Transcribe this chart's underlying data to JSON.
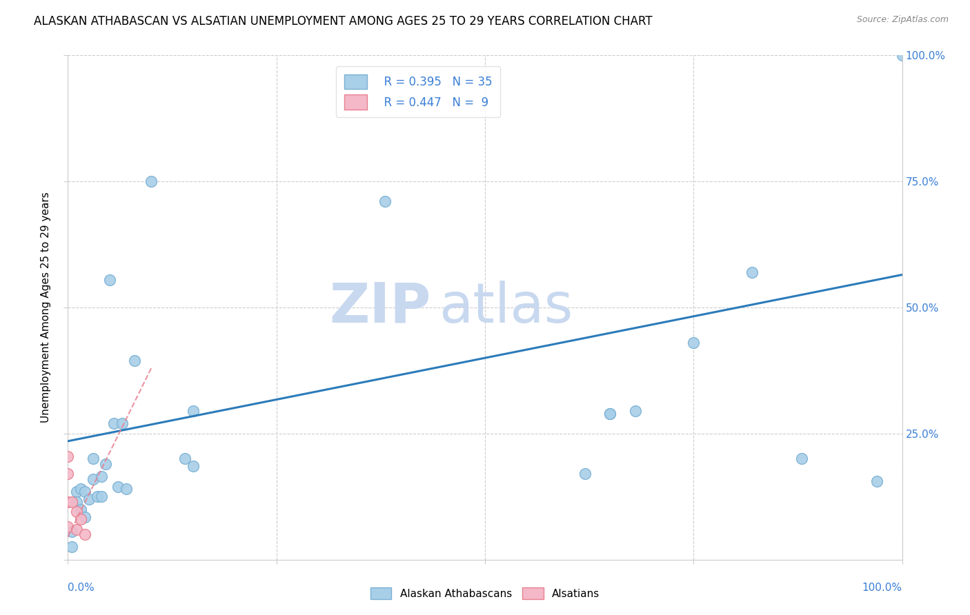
{
  "title": "ALASKAN ATHABASCAN VS ALSATIAN UNEMPLOYMENT AMONG AGES 25 TO 29 YEARS CORRELATION CHART",
  "source": "Source: ZipAtlas.com",
  "ylabel": "Unemployment Among Ages 25 to 29 years",
  "legend_label1": "Alaskan Athabascans",
  "legend_label2": "Alsatians",
  "legend_r1": "R = 0.395",
  "legend_n1": "N = 35",
  "legend_r2": "R = 0.447",
  "legend_n2": "N =  9",
  "watermark_zip": "ZIP",
  "watermark_atlas": "atlas",
  "blue_scatter_x": [
    0.005,
    0.005,
    0.01,
    0.01,
    0.015,
    0.015,
    0.02,
    0.02,
    0.025,
    0.03,
    0.03,
    0.035,
    0.04,
    0.04,
    0.045,
    0.05,
    0.055,
    0.06,
    0.065,
    0.07,
    0.08,
    0.1,
    0.14,
    0.15,
    0.15,
    0.38,
    0.62,
    0.65,
    0.65,
    0.68,
    0.75,
    0.82,
    0.88,
    0.97,
    1.0
  ],
  "blue_scatter_y": [
    0.055,
    0.025,
    0.135,
    0.115,
    0.14,
    0.1,
    0.135,
    0.085,
    0.12,
    0.2,
    0.16,
    0.125,
    0.165,
    0.125,
    0.19,
    0.555,
    0.27,
    0.145,
    0.27,
    0.14,
    0.395,
    0.75,
    0.2,
    0.295,
    0.185,
    0.71,
    0.17,
    0.29,
    0.29,
    0.295,
    0.43,
    0.57,
    0.2,
    0.155,
    1.0
  ],
  "pink_scatter_x": [
    0.0,
    0.0,
    0.0,
    0.0,
    0.005,
    0.01,
    0.01,
    0.015,
    0.02
  ],
  "pink_scatter_y": [
    0.205,
    0.17,
    0.115,
    0.065,
    0.115,
    0.095,
    0.06,
    0.08,
    0.05
  ],
  "blue_line_x": [
    0.0,
    1.0
  ],
  "blue_line_y": [
    0.235,
    0.565
  ],
  "pink_line_x": [
    0.0,
    0.1
  ],
  "pink_line_y": [
    0.045,
    0.38
  ],
  "blue_dot_color": "#a8cfe8",
  "blue_edge_color": "#7ab0d4",
  "pink_dot_color": "#f4b8c8",
  "pink_edge_color": "#e88090",
  "blue_line_color": "#2b7bba",
  "pink_line_color": "#e87888",
  "background_color": "#ffffff",
  "grid_color": "#cccccc",
  "title_fontsize": 12,
  "axis_label_fontsize": 11,
  "tick_label_color": "#3a7fd5",
  "xlim": [
    0.0,
    1.0
  ],
  "ylim": [
    0.0,
    1.0
  ],
  "xticks": [
    0.0,
    0.25,
    0.5,
    0.75,
    1.0
  ],
  "yticks": [
    0.0,
    0.25,
    0.5,
    0.75,
    1.0
  ],
  "x_end_labels": [
    "0.0%",
    "100.0%"
  ],
  "right_ytick_labels": [
    "",
    "25.0%",
    "50.0%",
    "75.0%",
    "100.0%"
  ],
  "dot_size": 130
}
